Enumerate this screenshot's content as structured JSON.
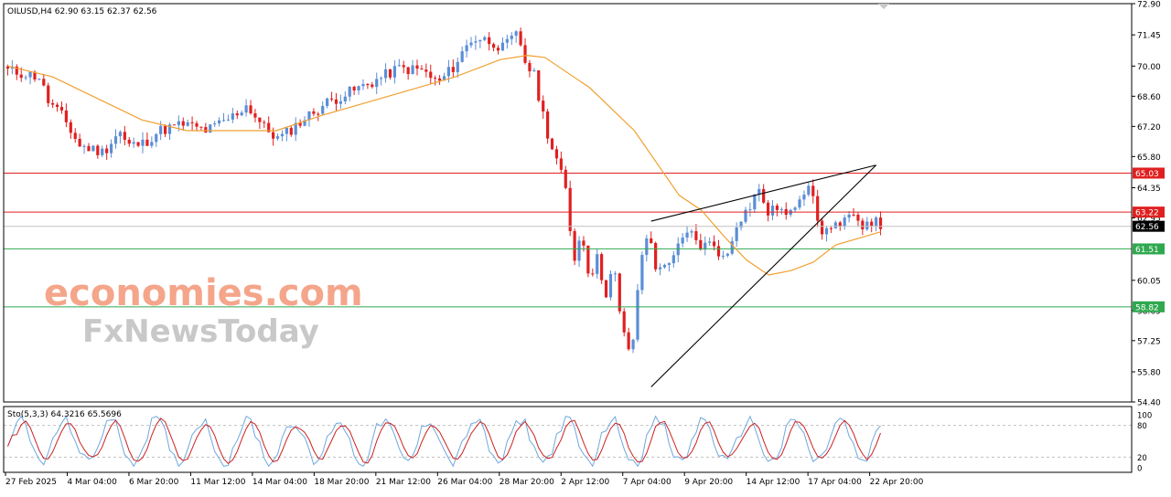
{
  "chart_data": {
    "type": "candlestick",
    "symbol_header": "OILUSD,H4  62.90 63.15 62.37 62.56",
    "ylim": [
      54.4,
      72.9
    ],
    "y_ticks": [
      "72.90",
      "71.45",
      "70.00",
      "68.60",
      "67.20",
      "65.80",
      "64.35",
      "62.95",
      "60.05",
      "58.65",
      "57.25",
      "55.80",
      "54.40"
    ],
    "x_ticks": [
      "27 Feb 2025",
      "4 Mar 04:00",
      "6 Mar 20:00",
      "11 Mar 12:00",
      "14 Mar 04:00",
      "18 Mar 20:00",
      "21 Mar 12:00",
      "26 Mar 04:00",
      "28 Mar 20:00",
      "2 Apr 12:00",
      "7 Apr 04:00",
      "9 Apr 20:00",
      "14 Apr 12:00",
      "17 Apr 04:00",
      "22 Apr 20:00"
    ],
    "price_lines": [
      {
        "value": 65.03,
        "label": "65.03",
        "color": "#e02020"
      },
      {
        "value": 63.22,
        "label": "63.22",
        "color": "#e02020"
      },
      {
        "value": 62.56,
        "label": "62.56",
        "color": "#000000"
      },
      {
        "value": 61.51,
        "label": "61.51",
        "color": "#2fa84f"
      },
      {
        "value": 58.82,
        "label": "58.82",
        "color": "#2fa84f"
      }
    ],
    "trendlines": [
      {
        "x1": 143,
        "y1": 55.1,
        "x2": 193,
        "y2": 65.4
      },
      {
        "x1": 143,
        "y1": 62.8,
        "x2": 193,
        "y2": 65.4
      }
    ],
    "ma_anchors": [
      [
        0,
        70.0
      ],
      [
        10,
        69.5
      ],
      [
        20,
        68.5
      ],
      [
        30,
        67.5
      ],
      [
        40,
        67.0
      ],
      [
        50,
        67.0
      ],
      [
        60,
        67.0
      ],
      [
        70,
        67.7
      ],
      [
        80,
        68.3
      ],
      [
        90,
        68.9
      ],
      [
        100,
        69.5
      ],
      [
        110,
        70.3
      ],
      [
        116,
        70.5
      ],
      [
        120,
        70.4
      ],
      [
        130,
        69.0
      ],
      [
        140,
        67.0
      ],
      [
        150,
        64.0
      ],
      [
        155,
        63.3
      ],
      [
        160,
        62.1
      ],
      [
        165,
        61.0
      ],
      [
        170,
        60.3
      ],
      [
        175,
        60.5
      ],
      [
        180,
        60.9
      ],
      [
        185,
        61.7
      ],
      [
        190,
        62.0
      ],
      [
        195,
        62.3
      ]
    ],
    "stoch_title": "Sto(5,3,3) 64.3216 65.5696",
    "stoch_ylim": [
      0,
      100
    ],
    "stoch_ticks": [
      "100",
      "80",
      "20",
      "0"
    ],
    "stoch_levels": [
      80,
      20
    ],
    "brand_line1": "economies.com",
    "brand_line2": "FxNewsToday",
    "colors": {
      "bull": "#5b8ed6",
      "bear": "#e02020",
      "ma": "#f0a030",
      "trend": "#000000",
      "stoch_main": "#6fa8dc",
      "stoch_signal": "#cc2222",
      "grid": "#c0c0c0",
      "brand_orange": "#f4a58a",
      "brand_gray": "#c8c8c8"
    }
  }
}
